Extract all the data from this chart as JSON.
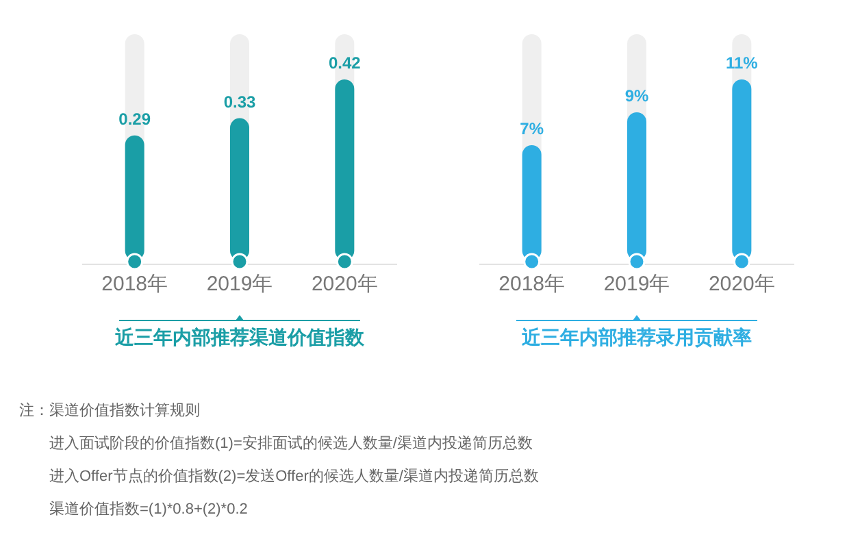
{
  "chart_data": [
    {
      "type": "bar",
      "title": "近三年内部推荐渠道价值指数",
      "categories": [
        "2018年",
        "2019年",
        "2020年"
      ],
      "values": [
        0.29,
        0.33,
        0.42
      ],
      "color": "#1a9ea6",
      "data_labels": true,
      "annotations": [
        "注：渠道价值指数计算规则",
        "进入面试阶段的价值指数(1)=安排面试的候选人数量/渠道内投递简历总数",
        "进入Offer节点的价值指数(2)=发送Offer的候选人数量/渠道内投递简历总数",
        "渠道价值指数=(1)*0.8+(2)*0.2"
      ]
    },
    {
      "type": "bar",
      "title": "近三年内部推荐录用贡献率",
      "categories": [
        "2018年",
        "2019年",
        "2020年"
      ],
      "values": [
        7,
        9,
        11
      ],
      "color": "#2eaee2",
      "value_labels": [
        "7%",
        "9%",
        "11%"
      ]
    }
  ]
}
